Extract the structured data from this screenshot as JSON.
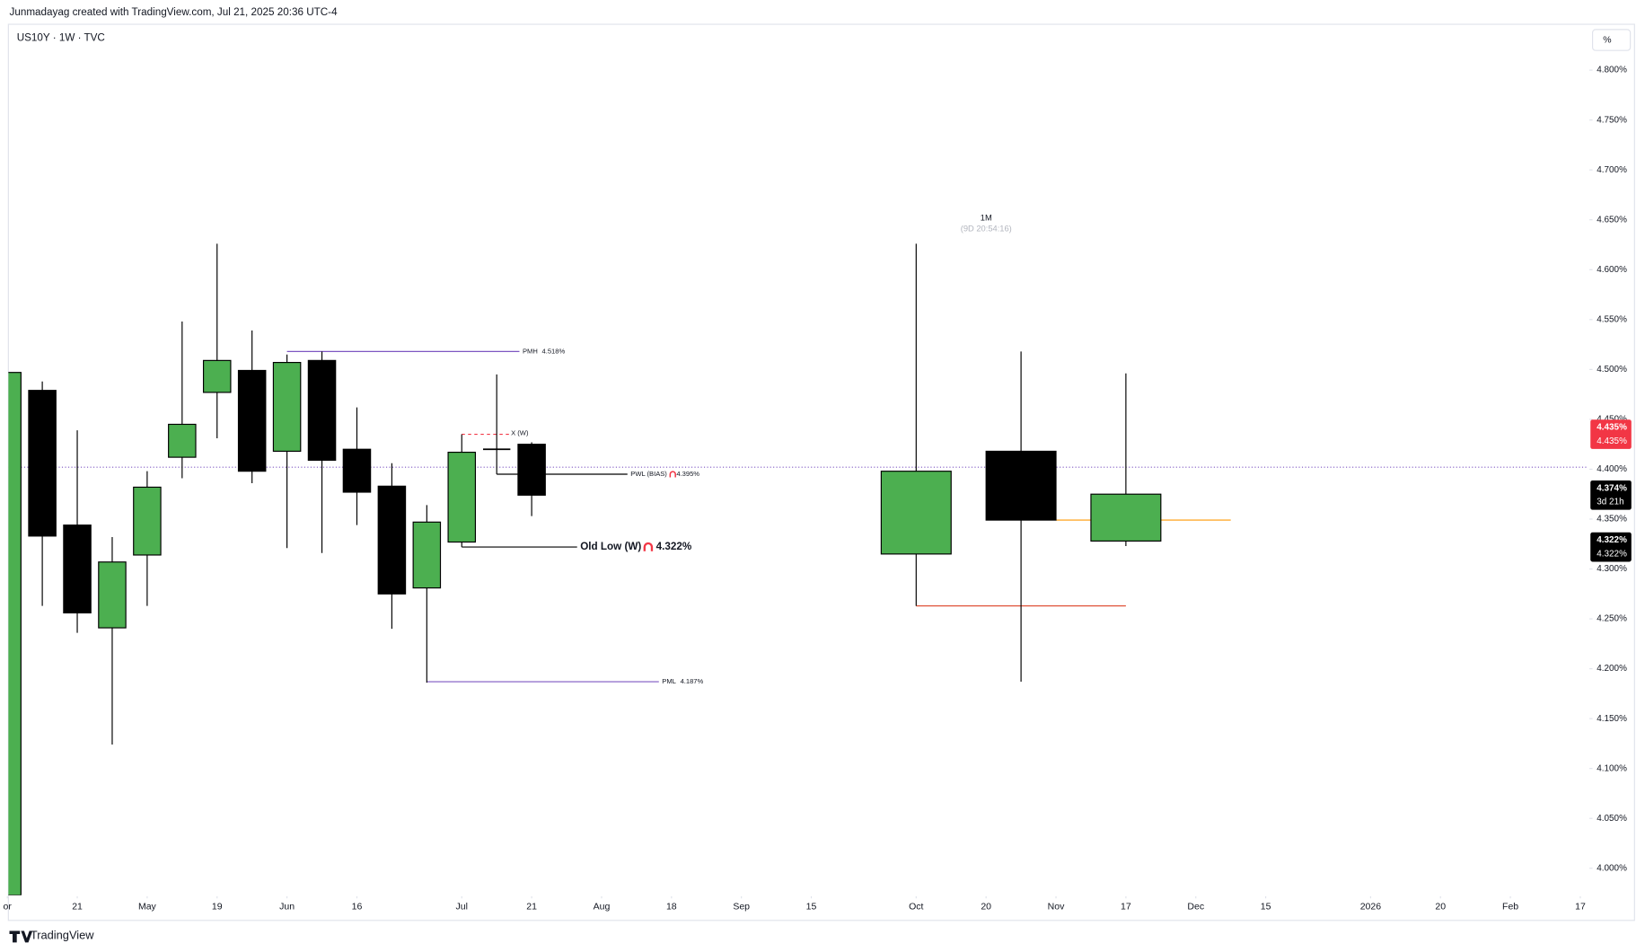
{
  "header": {
    "credit": "Junmadayag created with TradingView.com, Jul 21, 2025 20:36 UTC-4",
    "symbol": "US10Y · 1W · TVC",
    "scale_button": "%",
    "logo": "TradingView"
  },
  "chart_data": {
    "type": "candlestick",
    "monthly_label": "1M",
    "monthly_countdown": "(9D 20:54:16)",
    "xlim": [
      0,
      45.2
    ],
    "ylim": [
      3.973,
      4.846
    ],
    "xticks": [
      {
        "value": 0,
        "label": "or"
      },
      {
        "value": 2,
        "label": "21"
      },
      {
        "value": 4,
        "label": "May"
      },
      {
        "value": 6,
        "label": "19"
      },
      {
        "value": 8,
        "label": "Jun"
      },
      {
        "value": 10,
        "label": "16"
      },
      {
        "value": 13,
        "label": "Jul"
      },
      {
        "value": 15,
        "label": "21"
      },
      {
        "value": 17,
        "label": "Aug"
      },
      {
        "value": 19,
        "label": "18"
      },
      {
        "value": 21,
        "label": "Sep"
      },
      {
        "value": 23,
        "label": "15"
      },
      {
        "value": 26,
        "label": "Oct"
      },
      {
        "value": 28,
        "label": "20"
      },
      {
        "value": 30,
        "label": "Nov"
      },
      {
        "value": 32,
        "label": "17"
      },
      {
        "value": 34,
        "label": "Dec"
      },
      {
        "value": 36,
        "label": "15"
      },
      {
        "value": 39,
        "label": "2026"
      },
      {
        "value": 41,
        "label": "20"
      },
      {
        "value": 43,
        "label": "Feb"
      },
      {
        "value": 45,
        "label": "17"
      }
    ],
    "yticks": [
      {
        "value": 4.0,
        "label": "4.000%"
      },
      {
        "value": 4.05,
        "label": "4.050%"
      },
      {
        "value": 4.1,
        "label": "4.100%"
      },
      {
        "value": 4.15,
        "label": "4.150%"
      },
      {
        "value": 4.2,
        "label": "4.200%"
      },
      {
        "value": 4.25,
        "label": "4.250%"
      },
      {
        "value": 4.3,
        "label": "4.300%"
      },
      {
        "value": 4.35,
        "label": "4.350%"
      },
      {
        "value": 4.4,
        "label": "4.400%"
      },
      {
        "value": 4.45,
        "label": "4.450%"
      },
      {
        "value": 4.5,
        "label": "4.500%"
      },
      {
        "value": 4.55,
        "label": "4.550%"
      },
      {
        "value": 4.6,
        "label": "4.600%"
      },
      {
        "value": 4.65,
        "label": "4.650%"
      },
      {
        "value": 4.7,
        "label": "4.700%"
      },
      {
        "value": 4.75,
        "label": "4.750%"
      },
      {
        "value": 4.8,
        "label": "4.800%"
      }
    ],
    "up_color": "#4caf50",
    "down_color": "#000000",
    "candles": [
      {
        "x": 0,
        "open": 3.973,
        "high": 4.497,
        "low": 3.973,
        "close": 4.497
      },
      {
        "x": 1,
        "open": 4.479,
        "high": 4.488,
        "low": 4.263,
        "close": 4.333
      },
      {
        "x": 2,
        "open": 4.344,
        "high": 4.439,
        "low": 4.236,
        "close": 4.256
      },
      {
        "x": 3,
        "open": 4.241,
        "high": 4.332,
        "low": 4.124,
        "close": 4.307
      },
      {
        "x": 4,
        "open": 4.314,
        "high": 4.398,
        "low": 4.263,
        "close": 4.382
      },
      {
        "x": 5,
        "open": 4.412,
        "high": 4.548,
        "low": 4.391,
        "close": 4.445
      },
      {
        "x": 6,
        "open": 4.477,
        "high": 4.626,
        "low": 4.431,
        "close": 4.509
      },
      {
        "x": 7,
        "open": 4.499,
        "high": 4.539,
        "low": 4.386,
        "close": 4.398
      },
      {
        "x": 8,
        "open": 4.418,
        "high": 4.515,
        "low": 4.321,
        "close": 4.507
      },
      {
        "x": 9,
        "open": 4.509,
        "high": 4.518,
        "low": 4.316,
        "close": 4.409
      },
      {
        "x": 10,
        "open": 4.42,
        "high": 4.462,
        "low": 4.344,
        "close": 4.377
      },
      {
        "x": 11,
        "open": 4.383,
        "high": 4.406,
        "low": 4.24,
        "close": 4.275
      },
      {
        "x": 12,
        "open": 4.281,
        "high": 4.364,
        "low": 4.186,
        "close": 4.347
      },
      {
        "x": 13,
        "open": 4.327,
        "high": 4.435,
        "low": 4.322,
        "close": 4.417
      },
      {
        "x": 14,
        "open": 4.42,
        "high": 4.495,
        "low": 4.395,
        "close": 4.42
      },
      {
        "x": 15,
        "open": 4.425,
        "high": 4.427,
        "low": 4.353,
        "close": 4.374
      }
    ],
    "monthly_candles": [
      {
        "x": 26,
        "open": 4.315,
        "high": 4.626,
        "low": 4.263,
        "close": 4.398
      },
      {
        "x": 29,
        "open": 4.418,
        "high": 4.518,
        "low": 4.187,
        "close": 4.349
      },
      {
        "x": 32,
        "open": 4.328,
        "high": 4.496,
        "low": 4.323,
        "close": 4.375
      }
    ],
    "levels": [
      {
        "label": "PMH",
        "value_label": "4.518%",
        "value": 4.518,
        "x0": 8,
        "x1": 14.65,
        "color": "#7e57c2"
      },
      {
        "label": "PWL (BIAS)",
        "value_label": "4.395%",
        "value": 4.395,
        "x0": 14,
        "x1": 17.74,
        "color": "#000000"
      },
      {
        "label": "Old Low (W)",
        "value_label": "4.322%",
        "value": 4.322,
        "x0": 13,
        "x1": 16.3,
        "color": "#000000"
      },
      {
        "label": "PML",
        "value_label": "4.187%",
        "value": 4.187,
        "x0": 12,
        "x1": 18.64,
        "color": "#7e57c2"
      },
      {
        "label": "X (W)",
        "value": 4.435,
        "x0": 13,
        "x1": 14.35,
        "color": "#f23645"
      }
    ],
    "monthly_levels": [
      {
        "value": 4.263,
        "x0": 26,
        "x1": 32,
        "color": "#e0533a"
      },
      {
        "value": 4.349,
        "x0": 30,
        "x1": 35,
        "color": "#ff9800"
      }
    ],
    "crosshair_price": 4.402,
    "price_labels": [
      {
        "value": 4.435,
        "lines": [
          "4.435%",
          "4.435%"
        ],
        "color": "#f23645"
      },
      {
        "value": 4.374,
        "lines": [
          "4.374%",
          "3d 21h"
        ],
        "color": "#000000"
      },
      {
        "value": 4.322,
        "lines": [
          "4.322%",
          "4.322%"
        ],
        "color": "#000000"
      }
    ]
  }
}
